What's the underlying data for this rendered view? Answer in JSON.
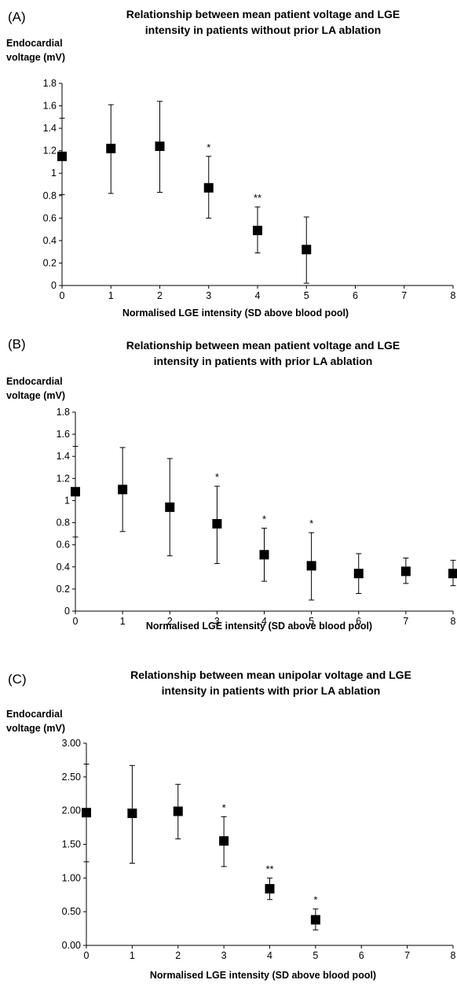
{
  "chart_data": [
    {
      "panel": "(A)",
      "type": "scatter",
      "title": "Relationship between mean patient voltage and LGE\nintensity in patients without prior LA ablation",
      "xlabel": "Normalised LGE intensity (SD above blood pool)",
      "ylabel": "Endocardial\nvoltage (mV)",
      "xlim": [
        0,
        8
      ],
      "ylim": [
        0,
        1.8
      ],
      "xticks": [
        "0",
        "1",
        "2",
        "3",
        "4",
        "5",
        "6",
        "7",
        "8"
      ],
      "yticks": [
        "0",
        "0.2",
        "0.4",
        "0.6",
        "0.8",
        "1",
        "1.2",
        "1.4",
        "1.6",
        "1.8"
      ],
      "points": [
        {
          "x": 0,
          "y": 1.15,
          "lo": 0.81,
          "hi": 1.49,
          "sig": ""
        },
        {
          "x": 1,
          "y": 1.22,
          "lo": 0.82,
          "hi": 1.61,
          "sig": ""
        },
        {
          "x": 2,
          "y": 1.24,
          "lo": 0.83,
          "hi": 1.64,
          "sig": ""
        },
        {
          "x": 3,
          "y": 0.87,
          "lo": 0.6,
          "hi": 1.15,
          "sig": "*"
        },
        {
          "x": 4,
          "y": 0.49,
          "lo": 0.29,
          "hi": 0.7,
          "sig": "**"
        },
        {
          "x": 5,
          "y": 0.32,
          "lo": 0.02,
          "hi": 0.61,
          "sig": ""
        }
      ],
      "grid": false
    },
    {
      "panel": "(B)",
      "type": "scatter",
      "title": "Relationship between mean patient voltage and LGE\nintensity in patients with prior LA ablation",
      "xlabel": "Normalised LGE intensity (SD above blood pool)",
      "ylabel": "Endocardial\nvoltage (mV)",
      "xlim": [
        0,
        8
      ],
      "ylim": [
        0,
        1.8
      ],
      "xticks": [
        "0",
        "1",
        "2",
        "3",
        "4",
        "5",
        "6",
        "7",
        "8"
      ],
      "yticks": [
        "0",
        "0.2",
        "0.4",
        "0.6",
        "0.8",
        "1",
        "1.2",
        "1.4",
        "1.6",
        "1.8"
      ],
      "points": [
        {
          "x": 0,
          "y": 1.08,
          "lo": 0.67,
          "hi": 1.49,
          "sig": ""
        },
        {
          "x": 1,
          "y": 1.1,
          "lo": 0.72,
          "hi": 1.48,
          "sig": ""
        },
        {
          "x": 2,
          "y": 0.94,
          "lo": 0.5,
          "hi": 1.38,
          "sig": ""
        },
        {
          "x": 3,
          "y": 0.79,
          "lo": 0.43,
          "hi": 1.13,
          "sig": "*"
        },
        {
          "x": 4,
          "y": 0.51,
          "lo": 0.27,
          "hi": 0.75,
          "sig": "*"
        },
        {
          "x": 5,
          "y": 0.41,
          "lo": 0.1,
          "hi": 0.71,
          "sig": "*"
        },
        {
          "x": 6,
          "y": 0.34,
          "lo": 0.16,
          "hi": 0.52,
          "sig": ""
        },
        {
          "x": 7,
          "y": 0.36,
          "lo": 0.25,
          "hi": 0.48,
          "sig": ""
        },
        {
          "x": 8,
          "y": 0.34,
          "lo": 0.23,
          "hi": 0.46,
          "sig": ""
        }
      ],
      "grid": false
    },
    {
      "panel": "(C)",
      "type": "scatter",
      "title": "Relationship between mean unipolar voltage and LGE\nintensity in patients with prior LA ablation",
      "xlabel": "Normalised LGE intensity (SD above blood pool)",
      "ylabel": "Endocardial\nvoltage (mV)",
      "xlim": [
        0,
        8
      ],
      "ylim": [
        0,
        3
      ],
      "xticks": [
        "0",
        "1",
        "2",
        "3",
        "4",
        "5",
        "6",
        "7",
        "8"
      ],
      "yticks": [
        "0.00",
        "0.50",
        "1.00",
        "1.50",
        "2.00",
        "2.50",
        "3.00"
      ],
      "points": [
        {
          "x": 0,
          "y": 1.97,
          "lo": 1.24,
          "hi": 2.69,
          "sig": ""
        },
        {
          "x": 1,
          "y": 1.96,
          "lo": 1.22,
          "hi": 2.67,
          "sig": ""
        },
        {
          "x": 2,
          "y": 1.99,
          "lo": 1.58,
          "hi": 2.39,
          "sig": ""
        },
        {
          "x": 3,
          "y": 1.55,
          "lo": 1.17,
          "hi": 1.91,
          "sig": "*"
        },
        {
          "x": 4,
          "y": 0.84,
          "lo": 0.68,
          "hi": 1.0,
          "sig": "**"
        },
        {
          "x": 5,
          "y": 0.38,
          "lo": 0.23,
          "hi": 0.54,
          "sig": "*"
        }
      ],
      "grid": false
    }
  ]
}
